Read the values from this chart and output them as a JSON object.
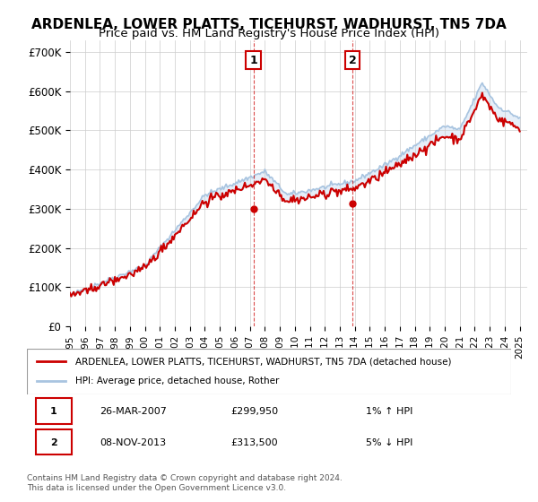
{
  "title": "ARDENLEA, LOWER PLATTS, TICEHURST, WADHURST, TN5 7DA",
  "subtitle": "Price paid vs. HM Land Registry's House Price Index (HPI)",
  "title_fontsize": 11,
  "subtitle_fontsize": 9.5,
  "ylabel_ticks": [
    "£0",
    "£100K",
    "£200K",
    "£300K",
    "£400K",
    "£500K",
    "£600K",
    "£700K"
  ],
  "ytick_values": [
    0,
    100000,
    200000,
    300000,
    400000,
    500000,
    600000,
    700000
  ],
  "ylim": [
    0,
    730000
  ],
  "xlim_start": 1995.0,
  "xlim_end": 2025.5,
  "background_color": "#ffffff",
  "plot_bg_color": "#ffffff",
  "grid_color": "#cccccc",
  "shade_color": "#dce9f7",
  "hpi_line_color": "#a8c4e0",
  "price_line_color": "#cc0000",
  "sale1_x": 2007.23,
  "sale1_y": 299950,
  "sale2_x": 2013.85,
  "sale2_y": 313500,
  "annotation1_label": "1",
  "annotation2_label": "2",
  "legend_line1": "ARDENLEA, LOWER PLATTS, TICEHURST, WADHURST, TN5 7DA (detached house)",
  "legend_line2": "HPI: Average price, detached house, Rother",
  "table_row1": [
    "1",
    "26-MAR-2007",
    "£299,950",
    "1% ↑ HPI"
  ],
  "table_row2": [
    "2",
    "08-NOV-2013",
    "£313,500",
    "5% ↓ HPI"
  ],
  "footnote": "Contains HM Land Registry data © Crown copyright and database right 2024.\nThis data is licensed under the Open Government Licence v3.0.",
  "xtick_years": [
    1995,
    1996,
    1997,
    1998,
    1999,
    2000,
    2001,
    2002,
    2003,
    2004,
    2005,
    2006,
    2007,
    2008,
    2009,
    2010,
    2011,
    2012,
    2013,
    2014,
    2015,
    2016,
    2017,
    2018,
    2019,
    2020,
    2021,
    2022,
    2023,
    2024,
    2025
  ]
}
